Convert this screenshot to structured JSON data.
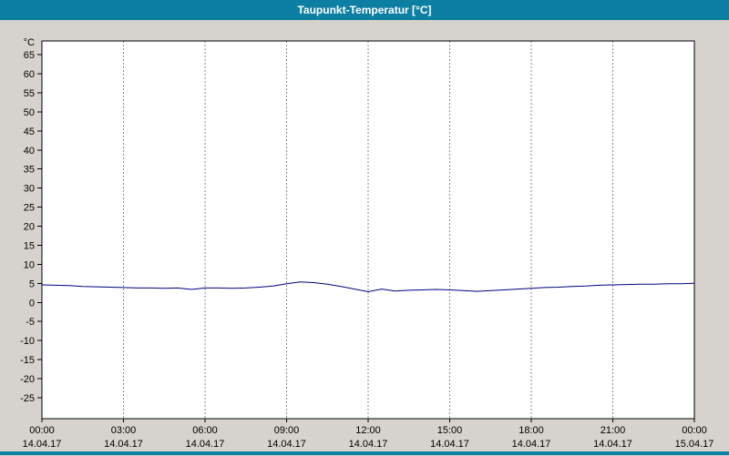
{
  "window": {
    "title": "Taupunkt-Temperatur [°C]"
  },
  "chart_data": {
    "type": "line",
    "title": "Taupunkt-Temperatur [°C]",
    "y_unit_label": "°C",
    "xlim": [
      0,
      24
    ],
    "ylim": [
      -30.5,
      68.6
    ],
    "grid": "vertical-dashed",
    "y_ticks": [
      65,
      60,
      55,
      50,
      45,
      40,
      35,
      30,
      25,
      20,
      15,
      10,
      5,
      0,
      -5,
      -10,
      -15,
      -20,
      -25
    ],
    "x_ticks": [
      {
        "hour": 0,
        "time": "00:00",
        "date": "14.04.17"
      },
      {
        "hour": 3,
        "time": "03:00",
        "date": "14.04.17"
      },
      {
        "hour": 6,
        "time": "06:00",
        "date": "14.04.17"
      },
      {
        "hour": 9,
        "time": "09:00",
        "date": "14.04.17"
      },
      {
        "hour": 12,
        "time": "12:00",
        "date": "14.04.17"
      },
      {
        "hour": 15,
        "time": "15:00",
        "date": "14.04.17"
      },
      {
        "hour": 18,
        "time": "18:00",
        "date": "14.04.17"
      },
      {
        "hour": 21,
        "time": "21:00",
        "date": "14.04.17"
      },
      {
        "hour": 24,
        "time": "00:00",
        "date": "15.04.17"
      }
    ],
    "series": [
      {
        "name": "Taupunkt-Temperatur",
        "color": "#000080",
        "x": [
          0,
          0.5,
          1,
          1.5,
          2,
          2.5,
          3,
          3.5,
          4,
          4.5,
          5,
          5.5,
          6,
          6.5,
          7,
          7.5,
          8,
          8.5,
          9,
          9.5,
          10,
          10.5,
          11,
          11.5,
          12,
          12.5,
          13,
          13.5,
          14,
          14.5,
          15,
          15.5,
          16,
          16.5,
          17,
          17.5,
          18,
          18.5,
          19,
          19.5,
          20,
          20.5,
          21,
          21.5,
          22,
          22.5,
          23,
          23.5,
          24
        ],
        "values": [
          4.6,
          4.5,
          4.4,
          4.2,
          4.1,
          4.0,
          3.9,
          3.8,
          3.8,
          3.7,
          3.8,
          3.4,
          3.8,
          3.8,
          3.7,
          3.8,
          4.0,
          4.3,
          4.9,
          5.4,
          5.2,
          4.8,
          4.2,
          3.5,
          2.8,
          3.5,
          3.0,
          3.2,
          3.3,
          3.4,
          3.3,
          3.1,
          2.9,
          3.1,
          3.3,
          3.5,
          3.7,
          3.9,
          4.0,
          4.2,
          4.3,
          4.5,
          4.6,
          4.7,
          4.8,
          4.8,
          4.9,
          4.9,
          5.0
        ]
      }
    ],
    "colors": {
      "titlebar_bg": "#0c7fa3",
      "titlebar_text": "#ffffff",
      "page_bg": "#d6d3ce",
      "plot_bg": "#ffffff",
      "grid": "#8a8a8a",
      "axis": "#000000",
      "line": "#000080"
    }
  }
}
